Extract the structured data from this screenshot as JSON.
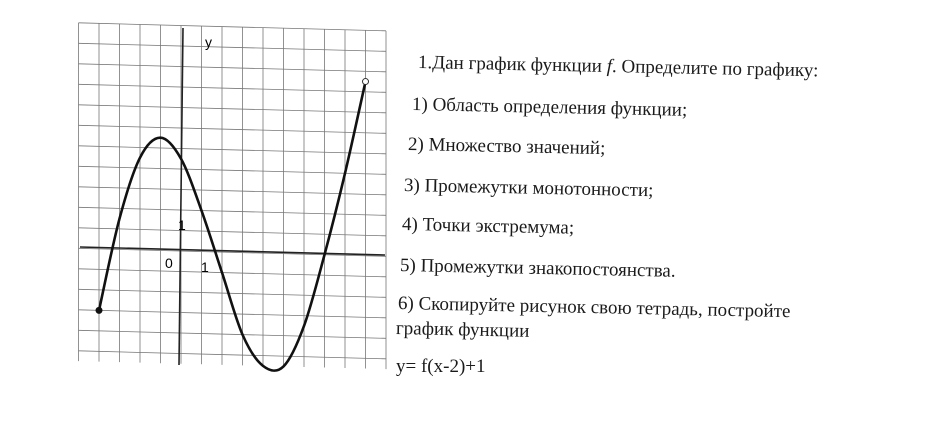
{
  "graph": {
    "axis_y_label": "y",
    "origin_label": "0",
    "unit_x_label": "1",
    "unit_y_label": "1",
    "curve_points": [
      [
        -4,
        -3
      ],
      [
        -3,
        1.5
      ],
      [
        -2,
        4.5
      ],
      [
        -1,
        5.5
      ],
      [
        0,
        4.5
      ],
      [
        1,
        2
      ],
      [
        2,
        -1
      ],
      [
        3,
        -4
      ],
      [
        4,
        -5.5
      ],
      [
        5,
        -5.5
      ],
      [
        6,
        -3.5
      ],
      [
        7,
        0
      ],
      [
        8,
        4
      ],
      [
        9,
        8.5
      ]
    ],
    "start_point": {
      "x": -4,
      "y": -3,
      "style": "filled"
    },
    "end_point": {
      "x": 9,
      "y": 8.5,
      "style": "open"
    }
  },
  "task": {
    "title_prefix": "1.Дан график функции ",
    "title_fn": "f",
    "title_suffix": ". Определите по графику:",
    "items": [
      "1) Область определения функции;",
      "2) Множество значений;",
      "3) Промежутки монотонности;",
      "4) Точки экстремума;",
      "5) Промежутки знакопостоянства.",
      "6) Скопируйте рисунок свою тетрадь, постройте",
      "график функции",
      "y= f(x-2)+1"
    ]
  }
}
